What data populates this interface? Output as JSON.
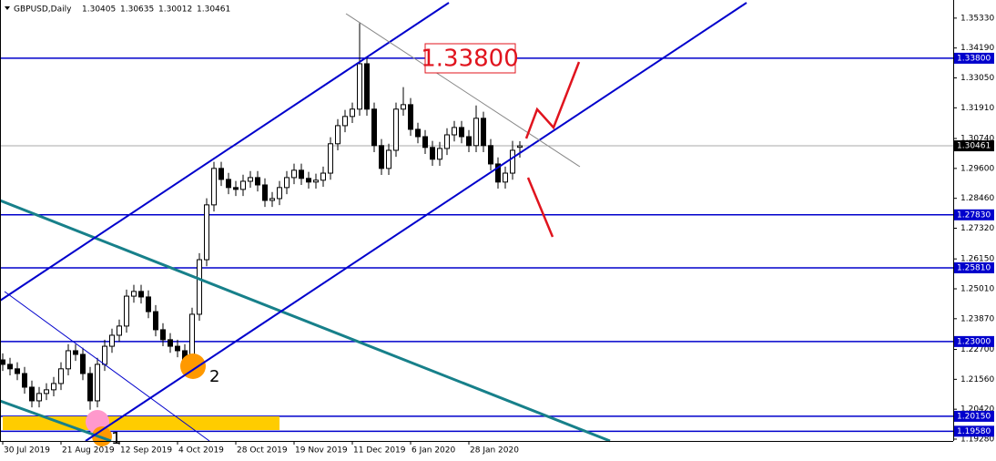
{
  "chart_data": {
    "type": "candlestick",
    "symbol": "GBPUSD,Daily",
    "x": [
      0,
      2,
      4,
      6,
      8,
      10,
      12,
      14,
      16,
      18,
      20,
      22,
      24,
      26,
      28,
      30,
      32,
      34,
      36,
      38,
      40,
      42,
      44,
      46,
      48,
      50,
      52,
      54,
      56,
      58,
      60,
      62,
      64,
      66,
      68,
      70,
      72,
      74,
      76,
      78,
      80,
      82,
      84,
      86,
      88,
      90,
      92,
      94,
      96,
      98,
      100,
      102,
      104,
      106,
      108,
      110,
      112,
      114,
      116,
      118,
      120,
      122,
      124,
      126,
      128,
      130,
      132,
      134,
      136,
      138,
      140,
      142
    ],
    "open": [
      1.223,
      1.2213,
      1.2196,
      1.2178,
      1.2126,
      1.2074,
      1.2102,
      1.2116,
      1.214,
      1.2196,
      1.2265,
      1.2251,
      1.2178,
      1.2074,
      1.2213,
      1.2282,
      1.2324,
      1.2359,
      1.2473,
      1.2491,
      1.247,
      1.2414,
      1.2345,
      1.2307,
      1.2282,
      1.2265,
      1.223,
      1.2404,
      1.2612,
      1.2821,
      1.296,
      1.2918,
      1.2887,
      1.288,
      1.2911,
      1.2925,
      1.2897,
      1.2838,
      1.2845,
      1.2887,
      1.2925,
      1.2953,
      1.2922,
      1.2908,
      1.2915,
      1.2942,
      1.3054,
      1.3123,
      1.3158,
      1.3186,
      1.3359,
      1.3186,
      1.3047,
      1.296,
      1.3029,
      1.3186,
      1.3203,
      1.3109,
      1.3081,
      1.304,
      1.2995,
      1.3036,
      1.3088,
      1.3116,
      1.3081,
      1.3047,
      1.3151,
      1.3047,
      1.2977,
      1.2908,
      1.2942,
      1.30405
    ],
    "high": [
      1.2255,
      1.2238,
      1.2221,
      1.2203,
      1.2151,
      1.2127,
      1.2141,
      1.2165,
      1.2221,
      1.229,
      1.229,
      1.2276,
      1.2203,
      1.2238,
      1.2307,
      1.2349,
      1.2384,
      1.2498,
      1.2516,
      1.2516,
      1.2495,
      1.2439,
      1.237,
      1.2332,
      1.2307,
      1.229,
      1.2429,
      1.2637,
      1.2846,
      1.2985,
      1.2985,
      1.2943,
      1.2912,
      1.2936,
      1.295,
      1.295,
      1.2922,
      1.287,
      1.2912,
      1.295,
      1.2978,
      1.2978,
      1.2947,
      1.294,
      1.2967,
      1.3079,
      1.3148,
      1.3183,
      1.3211,
      1.3514,
      1.3384,
      1.3211,
      1.3072,
      1.3054,
      1.3211,
      1.327,
      1.3228,
      1.3134,
      1.3106,
      1.3065,
      1.3061,
      1.3113,
      1.3141,
      1.3141,
      1.3106,
      1.32,
      1.3176,
      1.3072,
      1.3002,
      1.2967,
      1.3065,
      1.30635
    ],
    "low": [
      1.2188,
      1.2171,
      1.2153,
      1.2101,
      1.2049,
      1.2049,
      1.2077,
      1.2091,
      1.2115,
      1.2171,
      1.2226,
      1.2153,
      1.204,
      1.2049,
      1.2188,
      1.2257,
      1.2299,
      1.2334,
      1.2448,
      1.2445,
      1.2389,
      1.232,
      1.2282,
      1.2257,
      1.224,
      1.219,
      1.2205,
      1.2379,
      1.2587,
      1.2796,
      1.2893,
      1.2862,
      1.2855,
      1.2855,
      1.2886,
      1.2872,
      1.2813,
      1.2813,
      1.282,
      1.2862,
      1.29,
      1.2897,
      1.2883,
      1.2883,
      1.289,
      1.2917,
      1.3029,
      1.3098,
      1.3133,
      1.3161,
      1.3161,
      1.3022,
      1.2935,
      1.2935,
      1.3004,
      1.3161,
      1.3084,
      1.3056,
      1.3015,
      1.297,
      1.297,
      1.3011,
      1.3063,
      1.3056,
      1.3022,
      1.3022,
      1.3022,
      1.2952,
      1.2883,
      1.2883,
      1.2917,
      1.30012
    ],
    "close": [
      1.2213,
      1.2196,
      1.2178,
      1.2126,
      1.2074,
      1.2102,
      1.2116,
      1.214,
      1.2196,
      1.2265,
      1.2251,
      1.2178,
      1.2074,
      1.2213,
      1.2282,
      1.2324,
      1.2359,
      1.2473,
      1.2491,
      1.247,
      1.2414,
      1.2345,
      1.2307,
      1.2282,
      1.2265,
      1.223,
      1.2404,
      1.2612,
      1.2821,
      1.296,
      1.2918,
      1.2887,
      1.288,
      1.2911,
      1.2925,
      1.2897,
      1.2838,
      1.2845,
      1.2887,
      1.2925,
      1.2953,
      1.2922,
      1.2908,
      1.2915,
      1.2942,
      1.3054,
      1.3123,
      1.3158,
      1.3186,
      1.3359,
      1.3186,
      1.3047,
      1.296,
      1.3029,
      1.3186,
      1.3203,
      1.3109,
      1.3081,
      1.304,
      1.2995,
      1.3036,
      1.3088,
      1.3116,
      1.3081,
      1.3047,
      1.3151,
      1.3047,
      1.2977,
      1.2908,
      1.2942,
      1.3029,
      1.30461
    ],
    "xlim": [
      -0.75,
      261
    ],
    "xticks": [
      {
        "value": 0,
        "label": "30 Jul 2019"
      },
      {
        "value": 16,
        "label": "21 Aug 2019"
      },
      {
        "value": 32,
        "label": "12 Sep 2019"
      },
      {
        "value": 48,
        "label": "4 Oct 2019"
      },
      {
        "value": 64,
        "label": "28 Oct 2019"
      },
      {
        "value": 80,
        "label": "19 Nov 2019"
      },
      {
        "value": 96,
        "label": "11 Dec 2019"
      },
      {
        "value": 112,
        "label": "6 Jan 2020"
      },
      {
        "value": 128,
        "label": "28 Jan 2020"
      }
    ],
    "ylim": [
      1.1921,
      1.3602
    ],
    "yticks": [
      {
        "value": 1.3533,
        "label": "1.35330"
      },
      {
        "value": 1.3419,
        "label": "1.34190"
      },
      {
        "value": 1.3305,
        "label": "1.33050"
      },
      {
        "value": 1.3191,
        "label": "1.31910"
      },
      {
        "value": 1.3074,
        "label": "1.30740"
      },
      {
        "value": 1.296,
        "label": "1.29600"
      },
      {
        "value": 1.2846,
        "label": "1.28460"
      },
      {
        "value": 1.2732,
        "label": "1.27320"
      },
      {
        "value": 1.2615,
        "label": "1.26150"
      },
      {
        "value": 1.2501,
        "label": "1.25010"
      },
      {
        "value": 1.2387,
        "label": "1.23870"
      },
      {
        "value": 1.227,
        "label": "1.22700"
      },
      {
        "value": 1.2156,
        "label": "1.21560"
      },
      {
        "value": 1.2042,
        "label": "1.20420"
      },
      {
        "value": 1.1928,
        "label": "1.19280"
      }
    ],
    "levels": [
      {
        "value": 1.338,
        "label": "1.33800"
      },
      {
        "value": 1.2783,
        "label": "1.27830"
      },
      {
        "value": 1.2581,
        "label": "1.25810"
      },
      {
        "value": 1.23,
        "label": "1.23000"
      },
      {
        "value": 1.2015,
        "label": "1.20150"
      },
      {
        "value": 1.1958,
        "label": "1.19580"
      }
    ],
    "level_color": "#0000cc",
    "annotations": [
      "1.33800",
      "2",
      "1"
    ]
  }
}
